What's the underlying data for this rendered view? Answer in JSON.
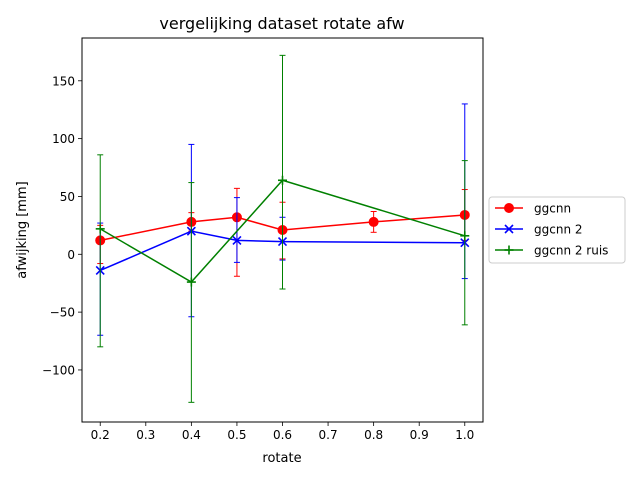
{
  "chart_data": {
    "type": "line",
    "title": "vergelijking dataset rotate afw",
    "xlabel": "rotate",
    "ylabel": "afwijking [mm]",
    "xlim": [
      0.16,
      1.04
    ],
    "ylim": [
      -145,
      187
    ],
    "x_ticks": [
      0.2,
      0.3,
      0.4,
      0.5,
      0.6,
      0.7,
      0.8,
      0.9,
      1.0
    ],
    "x_tick_labels": [
      "0.2",
      "0.3",
      "0.4",
      "0.5",
      "0.6",
      "0.7",
      "0.8",
      "0.9",
      "1.0"
    ],
    "y_ticks": [
      -100,
      -50,
      0,
      50,
      100,
      150
    ],
    "y_tick_labels": [
      "−100",
      "−50",
      "0",
      "50",
      "100",
      "150"
    ],
    "grid": false,
    "legend_placement": "outside-right",
    "series": [
      {
        "name": "ggcnn",
        "color": "#ff0000",
        "marker": "circle",
        "x": [
          0.2,
          0.4,
          0.5,
          0.6,
          0.8,
          1.0
        ],
        "y": [
          12,
          28,
          32,
          21,
          28,
          34
        ],
        "err_low": [
          -8,
          20,
          -19,
          -4,
          19,
          12
        ],
        "err_high": [
          25,
          36,
          57,
          45,
          37,
          56
        ]
      },
      {
        "name": "ggcnn 2",
        "color": "#0000ff",
        "marker": "x",
        "x": [
          0.2,
          0.4,
          0.5,
          0.6,
          1.0
        ],
        "y": [
          -14,
          20,
          12,
          11,
          10
        ],
        "err_low": [
          -70,
          -54,
          -7,
          -5,
          -21
        ],
        "err_high": [
          27,
          95,
          49,
          32,
          130
        ]
      },
      {
        "name": "ggcnn 2 ruis",
        "color": "#008000",
        "marker": "plus",
        "x": [
          0.2,
          0.4,
          0.6,
          1.0
        ],
        "y": [
          22,
          -24,
          64,
          16
        ],
        "err_low": [
          -80,
          -128,
          -30,
          -61
        ],
        "err_high": [
          86,
          62,
          172,
          81
        ]
      }
    ]
  }
}
